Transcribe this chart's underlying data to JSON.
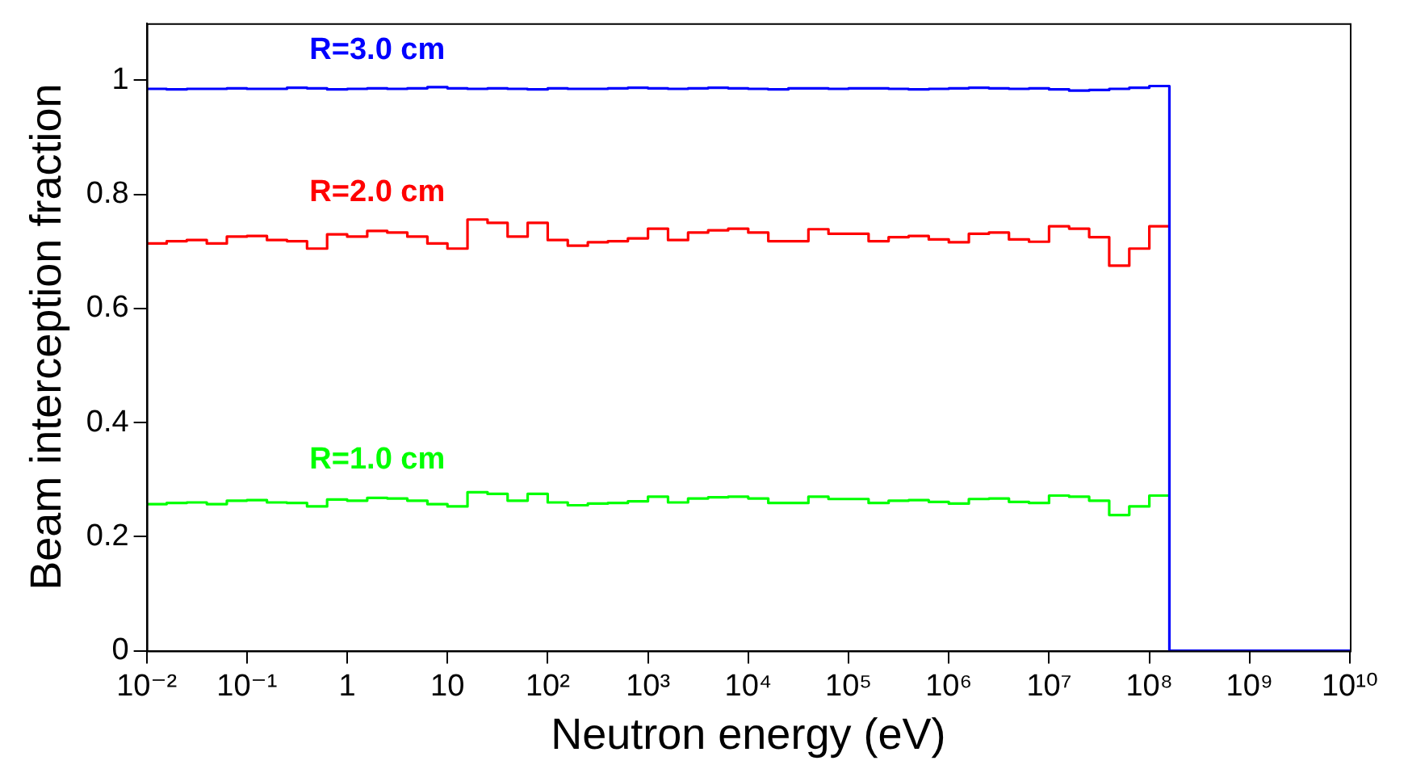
{
  "chart_data": {
    "type": "histogram",
    "xlabel": "Neutron energy (eV)",
    "ylabel": "Beam interception fraction",
    "bins": [
      0.01,
      0.01585,
      0.02512,
      0.03981,
      0.0631,
      0.1,
      0.1585,
      0.2512,
      0.3981,
      0.631,
      1,
      1.585,
      2.512,
      3.981,
      6.31,
      10,
      15.85,
      25.12,
      39.81,
      63.1,
      100,
      158.5,
      251.2,
      398.1,
      631,
      1000,
      1585,
      2512,
      3981,
      6310,
      10000,
      15850,
      25120,
      39810,
      63100,
      100000,
      158500,
      251200,
      398100,
      631000,
      1000000,
      1585000,
      2512000,
      3981000,
      6310000,
      10000000,
      15850000,
      25120000,
      39810000,
      63100000,
      100000000,
      158500000
    ],
    "series": [
      {
        "name": "R=3.0 cm",
        "color": "#0000ff",
        "bins": [
          0.01,
          0.01585,
          0.02512,
          0.03981,
          0.0631,
          0.1,
          0.1585,
          0.2512,
          0.3981,
          0.631,
          1,
          1.585,
          2.512,
          3.981,
          6.31,
          10,
          15.85,
          25.12,
          39.81,
          63.1,
          100,
          158.5,
          251.2,
          398.1,
          631,
          1000,
          1585,
          2512,
          3981,
          6310,
          10000,
          15850,
          25120,
          39810,
          63100,
          100000,
          158500,
          251200,
          398100,
          631000,
          1000000,
          1585000,
          2512000,
          3981000,
          6310000,
          10000000,
          15850000,
          25120000,
          39810000,
          63100000,
          100000000,
          158500000,
          10000000000
        ],
        "values": [
          0.985,
          0.984,
          0.985,
          0.985,
          0.986,
          0.985,
          0.985,
          0.987,
          0.986,
          0.984,
          0.985,
          0.986,
          0.985,
          0.986,
          0.988,
          0.986,
          0.985,
          0.986,
          0.985,
          0.984,
          0.986,
          0.985,
          0.985,
          0.986,
          0.987,
          0.986,
          0.985,
          0.986,
          0.987,
          0.986,
          0.985,
          0.984,
          0.986,
          0.986,
          0.985,
          0.986,
          0.986,
          0.985,
          0.984,
          0.985,
          0.986,
          0.987,
          0.986,
          0.985,
          0.986,
          0.984,
          0.982,
          0.983,
          0.985,
          0.987,
          0.99,
          0
        ]
      },
      {
        "name": "R=2.0 cm",
        "color": "#ff0000",
        "values": [
          0.714,
          0.718,
          0.72,
          0.714,
          0.726,
          0.727,
          0.72,
          0.718,
          0.705,
          0.73,
          0.726,
          0.736,
          0.733,
          0.726,
          0.714,
          0.705,
          0.756,
          0.75,
          0.726,
          0.75,
          0.72,
          0.71,
          0.716,
          0.718,
          0.723,
          0.74,
          0.72,
          0.733,
          0.737,
          0.74,
          0.733,
          0.718,
          0.718,
          0.739,
          0.731,
          0.731,
          0.718,
          0.725,
          0.727,
          0.721,
          0.716,
          0.731,
          0.733,
          0.721,
          0.717,
          0.744,
          0.74,
          0.725,
          0.675,
          0.705,
          0.744
        ]
      },
      {
        "name": "R=1.0 cm",
        "color": "#00ff00",
        "values": [
          0.257,
          0.259,
          0.26,
          0.257,
          0.263,
          0.264,
          0.26,
          0.259,
          0.253,
          0.265,
          0.263,
          0.268,
          0.267,
          0.263,
          0.257,
          0.253,
          0.278,
          0.275,
          0.263,
          0.275,
          0.26,
          0.255,
          0.258,
          0.259,
          0.262,
          0.27,
          0.26,
          0.267,
          0.269,
          0.27,
          0.267,
          0.259,
          0.259,
          0.27,
          0.266,
          0.266,
          0.259,
          0.263,
          0.264,
          0.261,
          0.258,
          0.266,
          0.267,
          0.261,
          0.259,
          0.272,
          0.27,
          0.263,
          0.238,
          0.253,
          0.272
        ]
      }
    ],
    "log": "x",
    "xlim": [
      0.01,
      10000000000
    ],
    "xticks": [
      {
        "value": 0.01,
        "label": "10⁻²"
      },
      {
        "value": 0.1,
        "label": "10⁻¹"
      },
      1,
      10,
      {
        "value": 100,
        "label": "10²"
      },
      {
        "value": 1000,
        "label": "10³"
      },
      {
        "value": 10000,
        "label": "10⁴"
      },
      {
        "value": 100000,
        "label": "10⁵"
      },
      {
        "value": 1000000,
        "label": "10⁶"
      },
      {
        "value": 10000000,
        "label": "10⁷"
      },
      {
        "value": 100000000,
        "label": "10⁸"
      },
      {
        "value": 1000000000,
        "label": "10⁹"
      },
      {
        "value": 10000000000,
        "label": "10¹⁰"
      }
    ],
    "ylim": [
      0,
      1.1
    ],
    "yticks": [
      0,
      0.2,
      0.4,
      0.6,
      0.8,
      1
    ],
    "grid": false,
    "legend": false
  }
}
